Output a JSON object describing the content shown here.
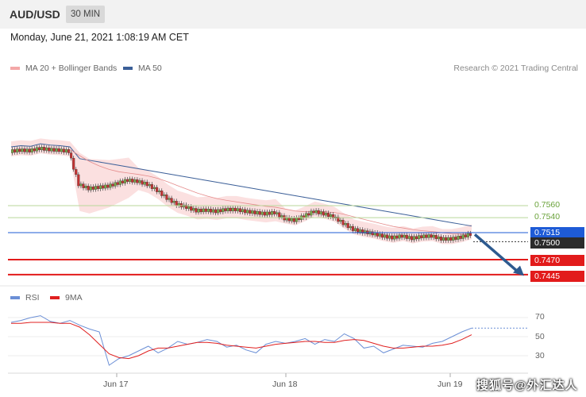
{
  "header": {
    "symbol": "AUD/USD",
    "timeframe": "30 MIN",
    "datetime": "Monday, June 21, 2021 1:08:19 AM CET"
  },
  "legend": {
    "bb_label": "MA 20 + Bollinger Bands",
    "ma50_label": "MA 50",
    "rsi_label": "RSI",
    "ma9_label": "9MA",
    "credit": "Research © 2021 Trading Central"
  },
  "colors": {
    "bb": "#f4a7a7",
    "ma50": "#3b5f98",
    "rsi": "#6b8fd6",
    "ma9": "#e02020",
    "resist": "#6aa23a",
    "support": "#e21b1b",
    "pivot": "#1e5bd6"
  },
  "levels": {
    "r2": "0.7560",
    "r1": "0.7540",
    "pivot": "0.7515",
    "last": "0.7500",
    "s1": "0.7470",
    "s2": "0.7445"
  },
  "rsi_ticks": [
    "70",
    "50",
    "30"
  ],
  "x_labels": [
    "Jun 17",
    "Jun 18",
    "Jun 19"
  ],
  "watermark": "搜狐号@外汇达人",
  "chart_data": {
    "type": "candlestick",
    "y_price_points": [
      0.765,
      0.7652,
      0.7651,
      0.7655,
      0.7653,
      0.7652,
      0.765,
      0.7595,
      0.7588,
      0.759,
      0.7592,
      0.7597,
      0.7602,
      0.76,
      0.7595,
      0.7585,
      0.7572,
      0.7562,
      0.7557,
      0.7551,
      0.7552,
      0.755,
      0.7553,
      0.7553,
      0.755,
      0.7548,
      0.7546,
      0.7548,
      0.7538,
      0.7535,
      0.7542,
      0.755,
      0.7546,
      0.7541,
      0.753,
      0.752,
      0.7516,
      0.7513,
      0.7509,
      0.7506,
      0.7509,
      0.7505,
      0.7508,
      0.7509,
      0.7504,
      0.7504,
      0.7507,
      0.7512
    ],
    "rsi_values": [
      65,
      67,
      70,
      72,
      66,
      64,
      67,
      62,
      58,
      55,
      20,
      27,
      30,
      35,
      40,
      33,
      38,
      45,
      42,
      44,
      47,
      45,
      39,
      41,
      36,
      33,
      42,
      45,
      43,
      45,
      48,
      42,
      47,
      45,
      53,
      48,
      38,
      40,
      33,
      37,
      41,
      40,
      39,
      43,
      45,
      50,
      55,
      59
    ],
    "rsi_ma9_values": [
      64,
      64,
      65,
      65,
      65,
      64,
      64,
      60,
      52,
      42,
      32,
      28,
      27,
      30,
      35,
      38,
      38,
      40,
      42,
      44,
      44,
      43,
      41,
      40,
      39,
      38,
      40,
      42,
      43,
      44,
      45,
      45,
      44,
      44,
      46,
      47,
      46,
      43,
      40,
      38,
      38,
      39,
      40,
      40,
      41,
      43,
      47,
      52
    ],
    "levels": {
      "resistance_2": 0.756,
      "resistance_1": 0.754,
      "pivot": 0.7515,
      "last": 0.75,
      "support_1": 0.747,
      "support_2": 0.7445
    },
    "x_labels": [
      "Jun 17",
      "Jun 18",
      "Jun 19"
    ],
    "rsi_levels": [
      70,
      50,
      30
    ]
  }
}
